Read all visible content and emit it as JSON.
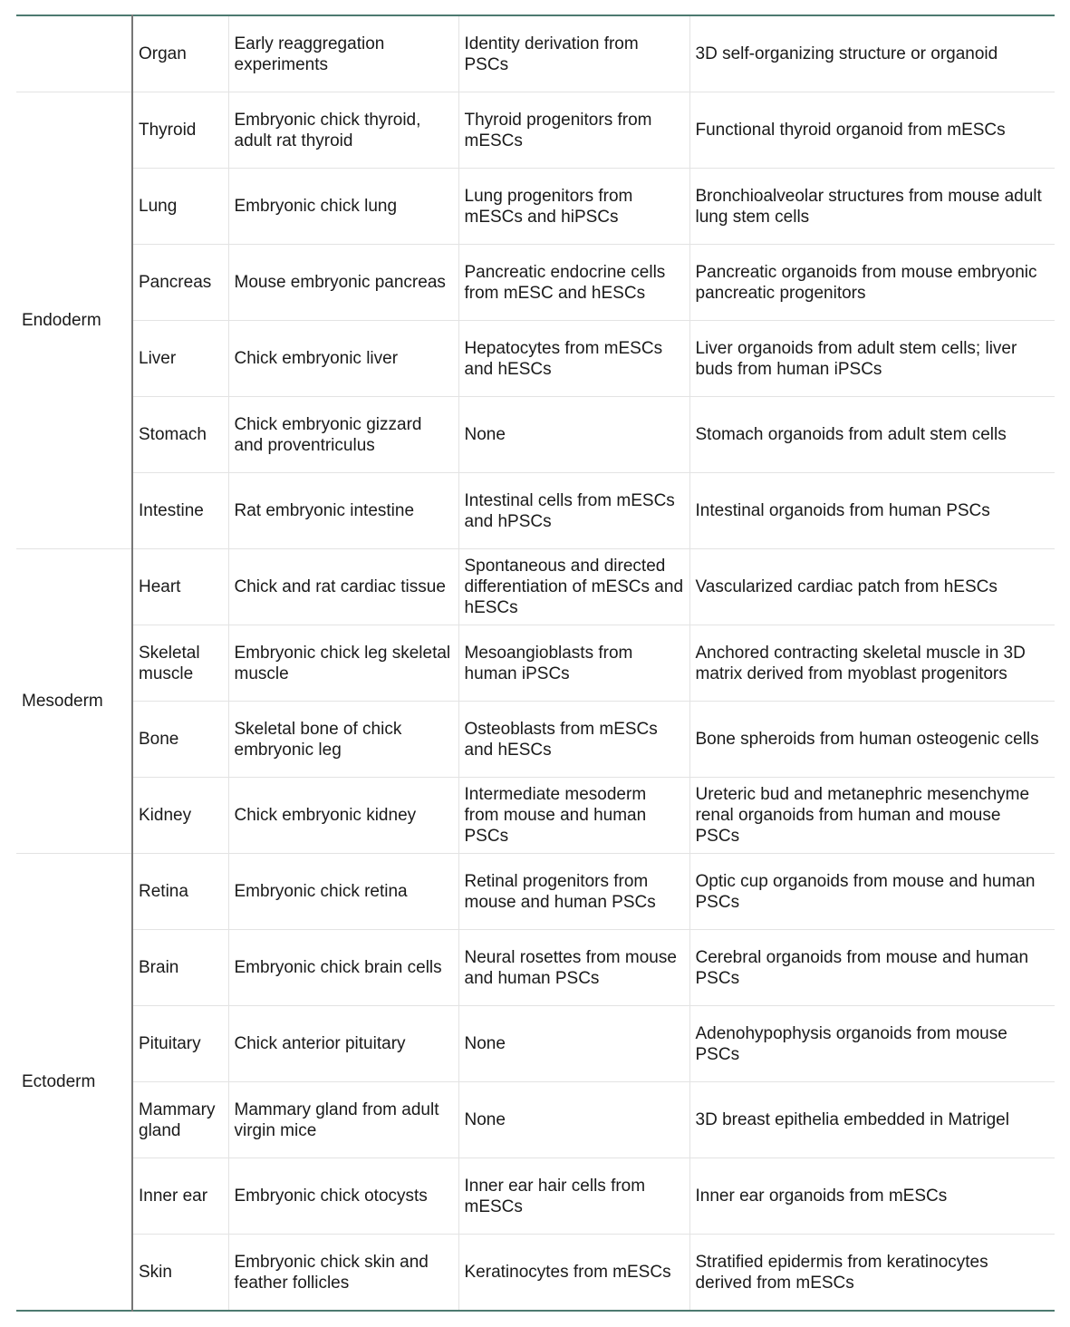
{
  "header": [
    "",
    "Organ",
    "Early reaggregation experiments",
    "Identity derivation from PSCs",
    "3D self-organizing structure or organoid"
  ],
  "groups": [
    {
      "layer": "Endoderm",
      "rows": [
        [
          "Thyroid",
          "Embryonic chick thyroid, adult rat thyroid",
          "Thyroid progenitors from mESCs",
          "Functional thyroid organoid from mESCs"
        ],
        [
          "Lung",
          "Embryonic chick lung",
          "Lung progenitors from mESCs and hiPSCs",
          "Bronchioalveolar structures from mouse adult lung stem cells"
        ],
        [
          "Pancreas",
          "Mouse embryonic pancreas",
          "Pancreatic endocrine cells from mESC and hESCs",
          "Pancreatic organoids from mouse embryonic pancreatic progenitors"
        ],
        [
          "Liver",
          "Chick embryonic liver",
          "Hepatocytes from mESCs and hESCs",
          "Liver organoids from adult stem cells; liver buds from human iPSCs"
        ],
        [
          "Stomach",
          "Chick embryonic gizzard and proventriculus",
          "None",
          "Stomach organoids from adult stem cells"
        ],
        [
          "Intestine",
          "Rat embryonic intestine",
          "Intestinal cells from mESCs and hPSCs",
          "Intestinal organoids from human PSCs"
        ]
      ]
    },
    {
      "layer": "Mesoderm",
      "rows": [
        [
          "Heart",
          "Chick and rat cardiac tissue",
          "Spontaneous and directed differentiation of mESCs and hESCs",
          "Vascularized cardiac patch from hESCs"
        ],
        [
          "Skeletal muscle",
          "Embryonic chick leg skeletal muscle",
          "Mesoangioblasts from human iPSCs",
          "Anchored contracting skeletal muscle in 3D matrix derived from myoblast progenitors"
        ],
        [
          "Bone",
          "Skeletal bone of chick embryonic leg",
          "Osteoblasts from mESCs and hESCs",
          "Bone spheroids from human osteogenic cells"
        ],
        [
          "Kidney",
          "Chick embryonic kidney",
          "Intermediate mesoderm from mouse and human PSCs",
          "Ureteric bud and metanephric mesenchyme renal organoids from human and mouse PSCs"
        ]
      ]
    },
    {
      "layer": "Ectoderm",
      "rows": [
        [
          "Retina",
          "Embryonic chick retina",
          "Retinal progenitors from mouse and human PSCs",
          "Optic cup organoids from mouse and human PSCs"
        ],
        [
          "Brain",
          "Embryonic chick brain cells",
          "Neural rosettes from mouse and human PSCs",
          "Cerebral organoids from mouse and human PSCs"
        ],
        [
          "Pituitary",
          "Chick anterior pituitary",
          "None",
          "Adenohypophysis organoids from mouse PSCs"
        ],
        [
          "Mammary gland",
          "Mammary gland from adult virgin mice",
          "None",
          "3D breast epithelia embedded in Matrigel"
        ],
        [
          "Inner ear",
          "Embryonic chick otocysts",
          "Inner ear hair cells from mESCs",
          "Inner ear organoids from mESCs"
        ],
        [
          "Skin",
          "Embryonic chick skin and feather follicles",
          "Keratinocytes from mESCs",
          "Stratified epidermis from keratinocytes derived from mESCs"
        ]
      ]
    }
  ]
}
